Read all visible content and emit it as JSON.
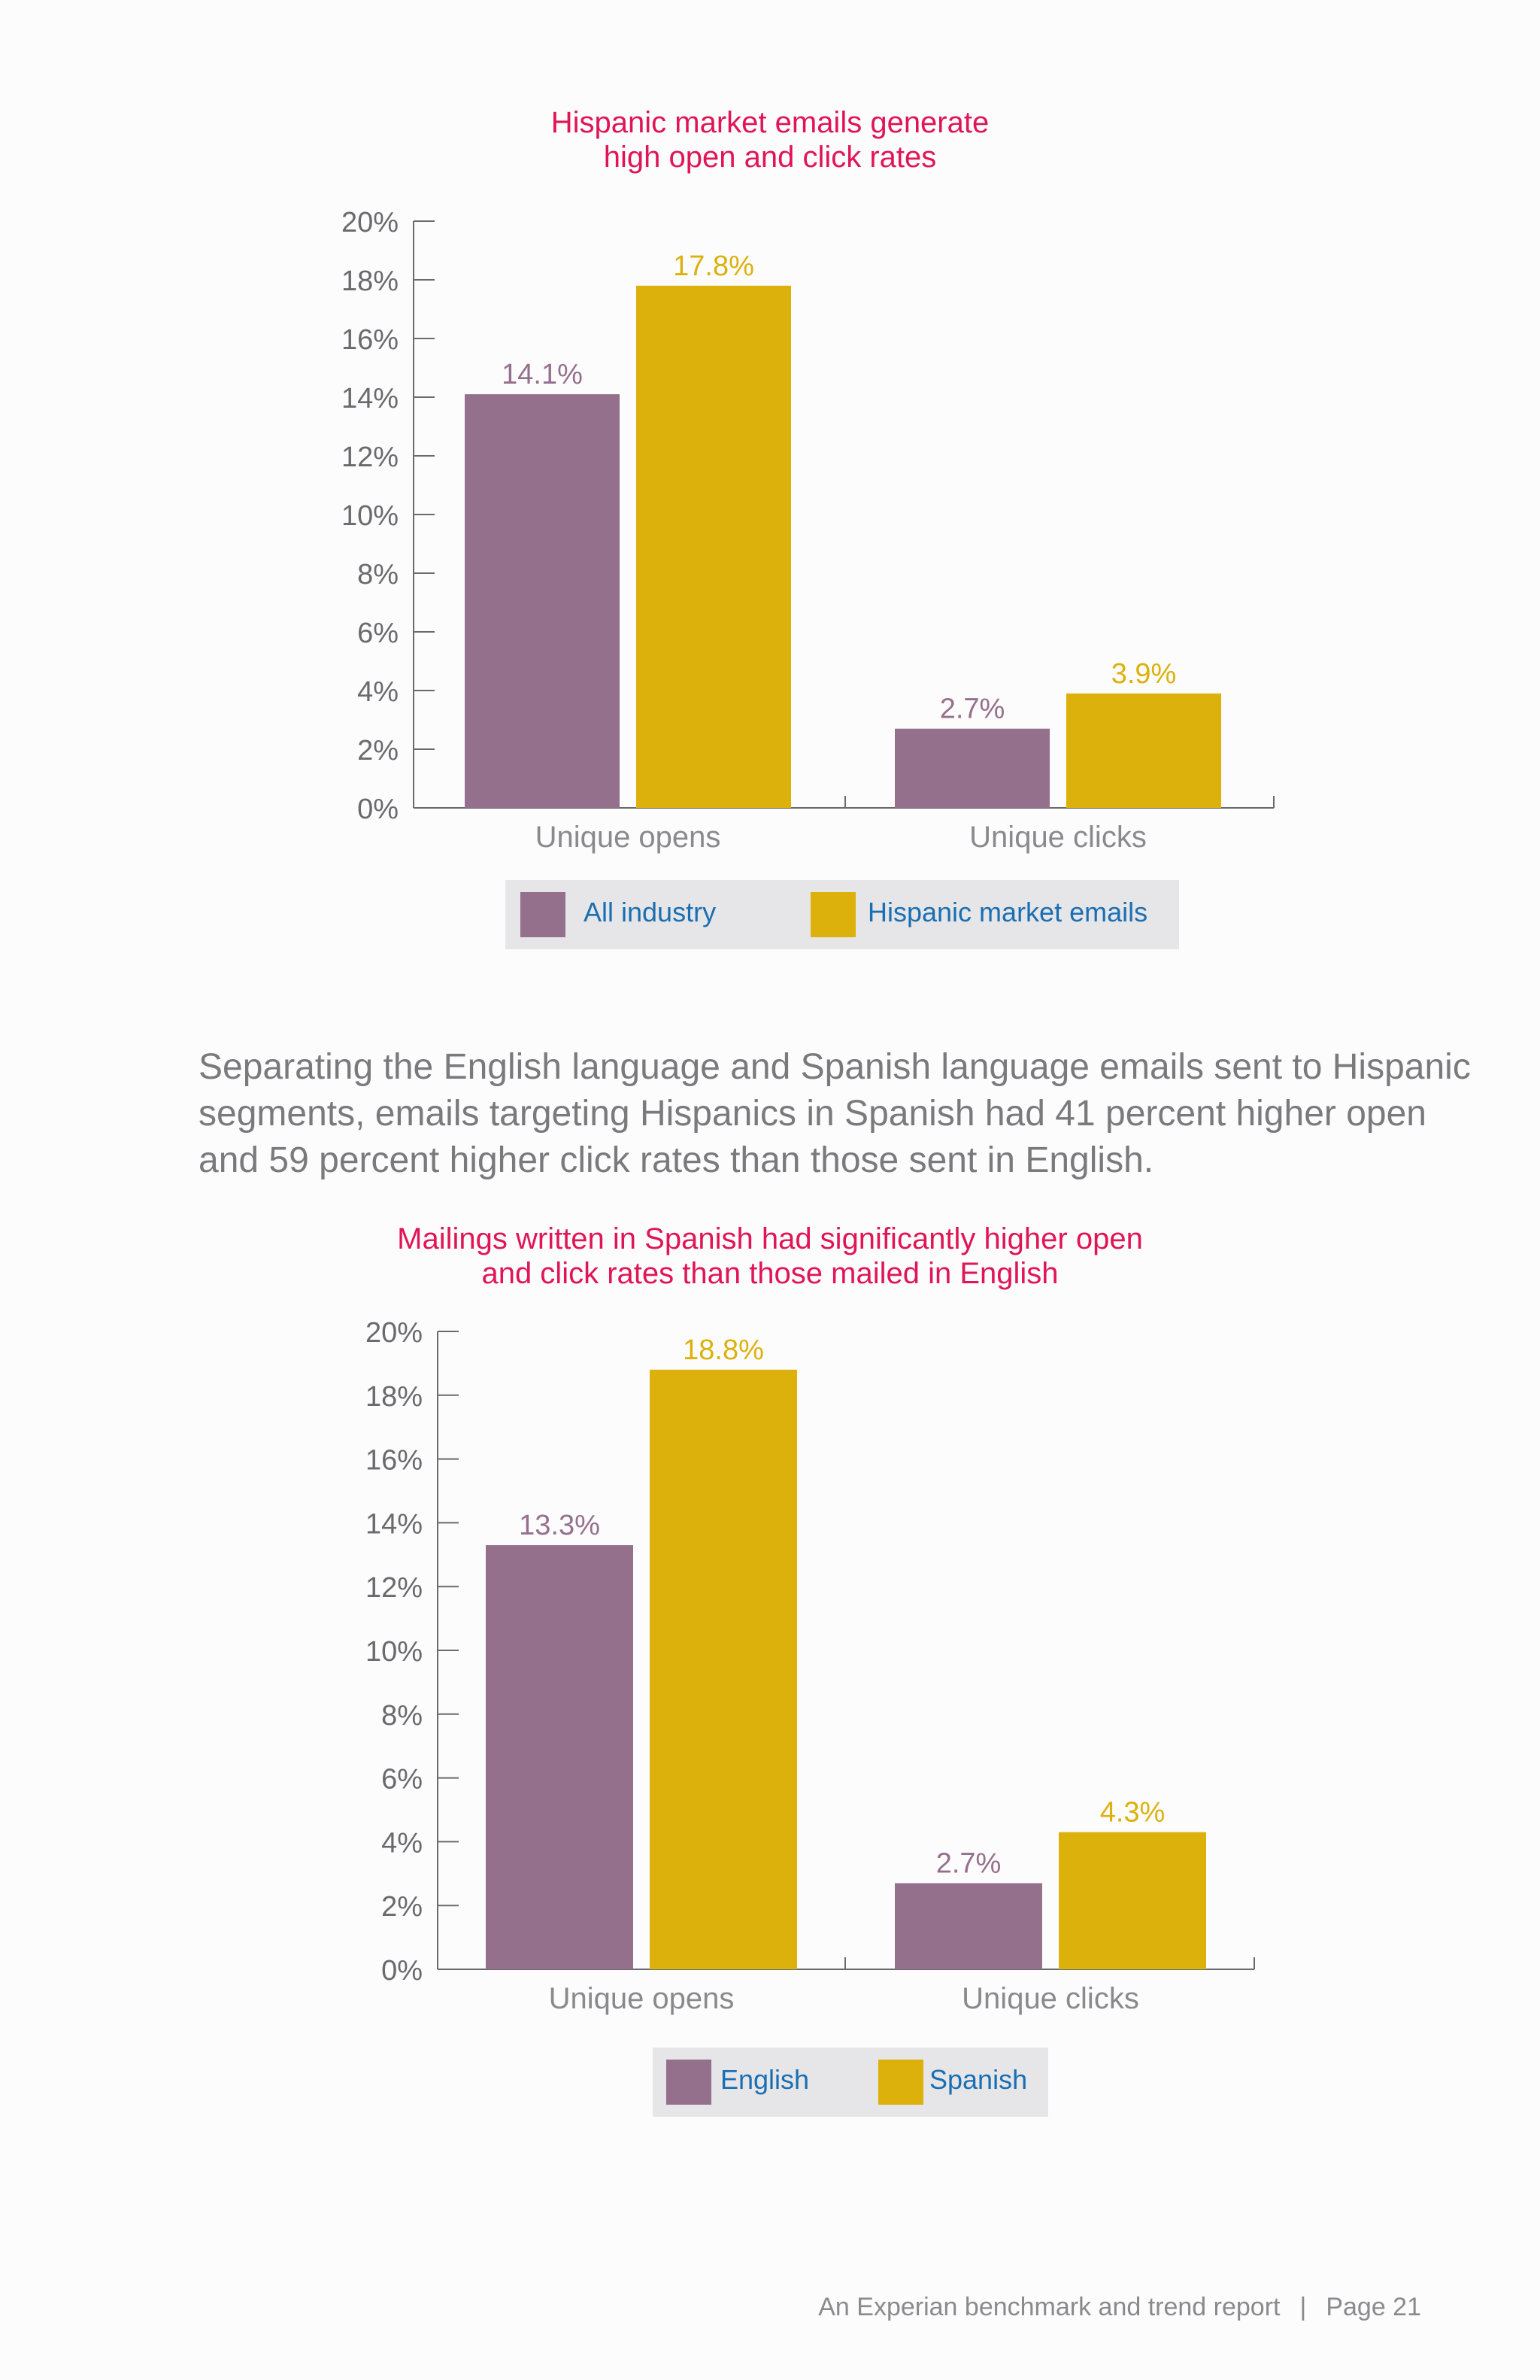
{
  "colors": {
    "title": "#e01557",
    "axis": "#6a6a6d",
    "purple": "#95708d",
    "gold": "#dcb10c",
    "legend_bg": "#e6e5e7",
    "legend_text": "#1a6fb3",
    "body_text": "#7a7a7d"
  },
  "chart_data": [
    {
      "type": "bar",
      "title_lines": [
        "Hispanic market emails generate",
        "high open and click rates"
      ],
      "categories": [
        "Unique opens",
        "Unique clicks"
      ],
      "series": [
        {
          "name": "All industry",
          "values": [
            14.1,
            2.7
          ],
          "labels": [
            "14.1%",
            "2.7%"
          ]
        },
        {
          "name": "Hispanic market emails",
          "values": [
            17.8,
            3.9
          ],
          "labels": [
            "17.8%",
            "3.9%"
          ]
        }
      ],
      "ylim": [
        0,
        20
      ],
      "yticks": [
        "0%",
        "2%",
        "4%",
        "6%",
        "8%",
        "10%",
        "12%",
        "14%",
        "16%",
        "18%",
        "20%"
      ],
      "legend": "bottom",
      "grid": false
    },
    {
      "type": "bar",
      "title_lines": [
        "Mailings written in Spanish had significantly higher open",
        "and click rates than those mailed in English"
      ],
      "categories": [
        "Unique opens",
        "Unique clicks"
      ],
      "series": [
        {
          "name": "English",
          "values": [
            13.3,
            2.7
          ],
          "labels": [
            "13.3%",
            "2.7%"
          ]
        },
        {
          "name": "Spanish",
          "values": [
            18.8,
            4.3
          ],
          "labels": [
            "18.8%",
            "4.3%"
          ]
        }
      ],
      "ylim": [
        0,
        20
      ],
      "yticks": [
        "0%",
        "2%",
        "4%",
        "6%",
        "8%",
        "10%",
        "12%",
        "14%",
        "16%",
        "18%",
        "20%"
      ],
      "legend": "bottom",
      "grid": false
    }
  ],
  "body": {
    "paragraph": "Separating the English language and Spanish language emails sent to Hispanic segments, emails targeting Hispanics in Spanish had 41 percent higher open and 59 percent higher click rates than those sent in English."
  },
  "footer": {
    "report": "An Experian benchmark and trend report",
    "separator": "|",
    "page": "Page 21"
  }
}
